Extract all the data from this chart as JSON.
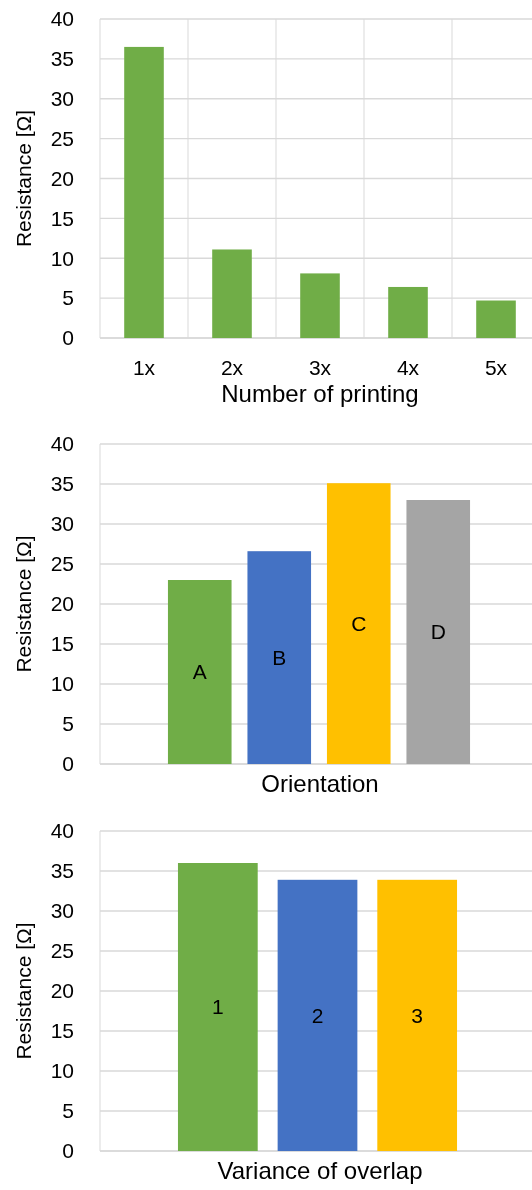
{
  "chart_data": [
    {
      "type": "bar",
      "xlabel": "Number of printing",
      "ylabel": "Resistance [Ω]",
      "categories": [
        "1x",
        "2x",
        "3x",
        "4x",
        "5x"
      ],
      "values": [
        36.5,
        11.1,
        8.1,
        6.4,
        4.7
      ],
      "color": "#70ad47",
      "ylim": [
        0,
        40
      ],
      "yticks": [
        0,
        5,
        10,
        15,
        20,
        25,
        30,
        35,
        40
      ],
      "grid": true
    },
    {
      "type": "bar",
      "xlabel": "Orientation",
      "ylabel": "Resistance [Ω]",
      "categories": [
        "A",
        "B",
        "C",
        "D"
      ],
      "values": [
        23.0,
        26.6,
        35.1,
        33.0
      ],
      "colors": [
        "#70ad47",
        "#4472c4",
        "#ffc000",
        "#a5a5a5"
      ],
      "ylim": [
        0,
        40
      ],
      "yticks": [
        0,
        5,
        10,
        15,
        20,
        25,
        30,
        35,
        40
      ],
      "grid": "y"
    },
    {
      "type": "bar",
      "xlabel": "Variance of overlap",
      "ylabel": "Resistance [Ω]",
      "categories": [
        "1",
        "2",
        "3"
      ],
      "values": [
        36.0,
        33.9,
        33.9
      ],
      "colors": [
        "#70ad47",
        "#4472c4",
        "#ffc000"
      ],
      "ylim": [
        0,
        40
      ],
      "yticks": [
        0,
        5,
        10,
        15,
        20,
        25,
        30,
        35,
        40
      ],
      "grid": "y"
    }
  ]
}
